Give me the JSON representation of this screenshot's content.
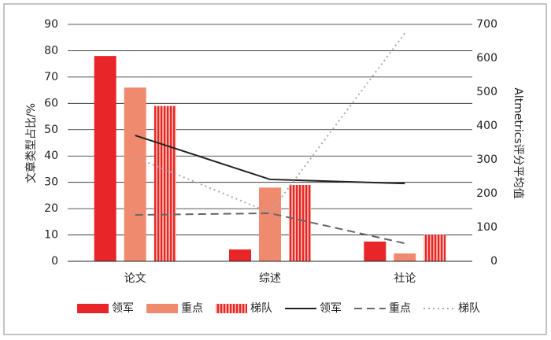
{
  "chart_data": {
    "type": "bar",
    "categories": [
      "论文",
      "综述",
      "社论"
    ],
    "y_label": "文章类型占比/%",
    "y2_label": "Altmetrics评分平均值",
    "ylim": [
      0,
      90
    ],
    "yticks": [
      0,
      10,
      20,
      30,
      40,
      50,
      60,
      70,
      80,
      90
    ],
    "y2lim": [
      0,
      700
    ],
    "y2ticks": [
      0,
      100,
      200,
      300,
      400,
      500,
      600,
      700
    ],
    "grid": true,
    "legend": "bottom",
    "series": [
      {
        "name": "领军",
        "type": "bar",
        "color": "#e8262a",
        "values": [
          78,
          4.5,
          7.5
        ]
      },
      {
        "name": "重点",
        "type": "bar",
        "color": "#f08a6e",
        "values": [
          66,
          28,
          3
        ]
      },
      {
        "name": "梯队",
        "type": "bar",
        "color": "#e8262a",
        "hatch": "vertical",
        "values": [
          59,
          29,
          10
        ]
      },
      {
        "name": "领军",
        "type": "line",
        "axis": "y2",
        "color": "#222222",
        "dash": "solid",
        "values": [
          372,
          242,
          230
        ]
      },
      {
        "name": "重点",
        "type": "line",
        "axis": "y2",
        "color": "#666666",
        "dash": "dashed",
        "values": [
          137,
          142,
          53
        ]
      },
      {
        "name": "梯队",
        "type": "line",
        "axis": "y2",
        "color": "#aaaaaa",
        "dash": "dotted",
        "values": [
          307,
          144,
          674
        ]
      }
    ]
  }
}
